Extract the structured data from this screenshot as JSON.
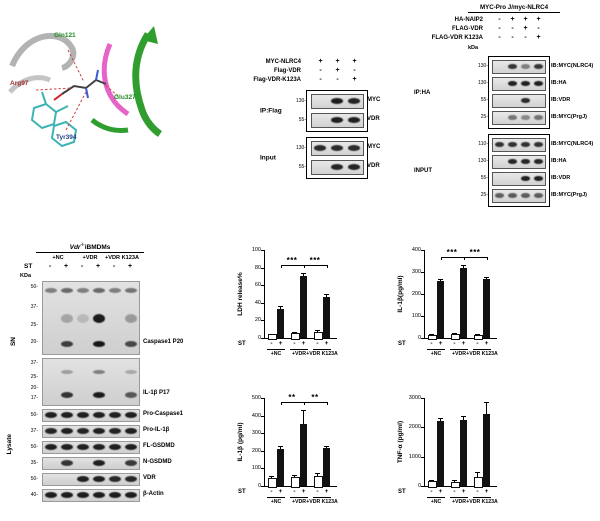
{
  "panel_a": {
    "residues": [
      {
        "name": "Gln121",
        "color": "#1f8a1f"
      },
      {
        "name": "Arg97",
        "color": "#a03030"
      },
      {
        "name": "Tyr394",
        "color": "#1f3f8a"
      },
      {
        "name": "Glu327",
        "color": "#1f8a1f"
      }
    ]
  },
  "panel_b": {
    "conditions": [
      {
        "label": "MYC-NLRC4",
        "values": [
          "+",
          "+",
          "+"
        ]
      },
      {
        "label": "Flag-VDR",
        "values": [
          "-",
          "+",
          "-"
        ]
      },
      {
        "label": "Flag-VDR-K123A",
        "values": [
          "-",
          "-",
          "+"
        ]
      }
    ],
    "sections": [
      {
        "label": "IP:Flag",
        "strips": [
          {
            "marker": "130",
            "target": "MYC",
            "bands": [
              0,
              0.92,
              0.88
            ]
          },
          {
            "marker": "55",
            "target": "VDR",
            "bands": [
              0,
              0.9,
              0.9
            ]
          }
        ]
      },
      {
        "label": "Input",
        "strips": [
          {
            "marker": "130",
            "target": "MYC",
            "bands": [
              0.85,
              0.85,
              0.85
            ]
          },
          {
            "marker": "55",
            "target": "VDR",
            "bands": [
              0,
              0.88,
              0.88
            ]
          }
        ]
      }
    ]
  },
  "panel_c": {
    "title": "MYC-Pro J/myc-NLRC4",
    "kda": "kDa",
    "conditions": [
      {
        "label": "HA-NAIP2",
        "values": [
          "-",
          "+",
          "+",
          "+"
        ]
      },
      {
        "label": "FLAG-VDR",
        "values": [
          "-",
          "-",
          "+",
          "-"
        ]
      },
      {
        "label": "FLAG-VDR K123A",
        "values": [
          "-",
          "-",
          "-",
          "+"
        ]
      }
    ],
    "sections": [
      {
        "label": "IP:HA",
        "strips": [
          {
            "marker": "130",
            "ib": "IB:MYC(NLRC4)",
            "bands": [
              0,
              0.8,
              0.45,
              0.8
            ]
          },
          {
            "marker": "130",
            "ib": "IB:HA",
            "bands": [
              0,
              0.9,
              0.9,
              0.9
            ]
          },
          {
            "marker": "55",
            "ib": "IB:VDR",
            "bands": [
              0,
              0,
              0.85,
              0
            ]
          },
          {
            "marker": "25",
            "ib": "IB:MYC(PrgJ)",
            "bands": [
              0,
              0.5,
              0.4,
              0.5
            ]
          }
        ]
      },
      {
        "label": "INPUT",
        "strips": [
          {
            "marker": "110",
            "ib": "IB:MYC(NLRC4)",
            "bands": [
              0.82,
              0.82,
              0.82,
              0.82
            ]
          },
          {
            "marker": "130",
            "ib": "IB:HA",
            "bands": [
              0,
              0.88,
              0.88,
              0.88
            ]
          },
          {
            "marker": "55",
            "ib": "IB:VDR",
            "bands": [
              0,
              0,
              0.9,
              0.9
            ]
          },
          {
            "marker": "25",
            "ib": "IB:MYC(PrgJ)",
            "bands": [
              0.6,
              0.62,
              0.62,
              0.62
            ]
          }
        ]
      }
    ]
  },
  "panel_d": {
    "title": {
      "gene": "Vdr",
      "sup": "-/-",
      "rest": "iBMDMs"
    },
    "groups": [
      "+NC",
      "+VDR",
      "+VDR K123A"
    ],
    "st_label": "ST",
    "st_values": [
      "-",
      "+",
      "-",
      "+",
      "-",
      "+"
    ],
    "kda": "KDa",
    "sn_label": "SN",
    "lysate_label": "Lysate",
    "sn_blots": [
      {
        "label": "Caspase1 P20",
        "markers": [
          "50",
          "37",
          "25",
          "20"
        ],
        "rows": [
          {
            "y": 0.12,
            "h": 5,
            "lanes": [
              0.45,
              0.55,
              0.45,
              0.55,
              0.45,
              0.5
            ]
          },
          {
            "y": 0.5,
            "h": 9,
            "lanes": [
              0,
              0.25,
              0.15,
              0.92,
              0,
              0.3
            ]
          },
          {
            "y": 0.86,
            "h": 6,
            "lanes": [
              0,
              0.75,
              0,
              0.95,
              0,
              0.7
            ]
          }
        ]
      },
      {
        "label": "IL-1β P17",
        "markers": [
          "37",
          "25",
          "20",
          "17"
        ],
        "rows": [
          {
            "y": 0.28,
            "h": 4,
            "lanes": [
              0,
              0.3,
              0,
              0.45,
              0,
              0.25
            ]
          },
          {
            "y": 0.78,
            "h": 6,
            "lanes": [
              0,
              0.8,
              0,
              0.92,
              0,
              0.62
            ]
          }
        ]
      }
    ],
    "lysate_strips": [
      {
        "marker": "50",
        "label": "Pro-Caspase1",
        "bands": [
          0.9,
          0.9,
          0.9,
          0.9,
          0.9,
          0.9
        ]
      },
      {
        "marker": "37",
        "label": "Pro-IL-1β",
        "bands": [
          0.88,
          0.9,
          0.88,
          0.9,
          0.88,
          0.9
        ]
      },
      {
        "marker": "50",
        "label": "FL-GSDMD",
        "bands": [
          0.9,
          0.9,
          0.9,
          0.9,
          0.9,
          0.9
        ]
      },
      {
        "marker": "35",
        "label": "N-GSDMD",
        "bands": [
          0,
          0.8,
          0,
          0.9,
          0,
          0.78
        ]
      },
      {
        "marker": "50",
        "label": "VDR",
        "bands": [
          0,
          0,
          0.9,
          0.9,
          0.86,
          0.86
        ]
      },
      {
        "marker": "40",
        "label": "β-Actin",
        "bands": [
          0.92,
          0.92,
          0.92,
          0.92,
          0.92,
          0.92
        ]
      }
    ]
  },
  "chart_data": [
    {
      "id": "ldh",
      "type": "bar",
      "ylabel": "LDH release%",
      "ylim": [
        0,
        100
      ],
      "yticks": [
        0,
        20,
        40,
        60,
        80,
        100
      ],
      "groups": [
        "+NC",
        "+VDR",
        "+VDR K123A"
      ],
      "st_label": "ST",
      "st": [
        "-",
        "+",
        "-",
        "+",
        "-",
        "+"
      ],
      "values": [
        4,
        33,
        6,
        70,
        7,
        47
      ],
      "errors": [
        1,
        3,
        1,
        4,
        2,
        3
      ],
      "filled": [
        false,
        true,
        false,
        true,
        false,
        true
      ],
      "sig": [
        {
          "a": 1,
          "b": 3,
          "label": "***"
        },
        {
          "a": 3,
          "b": 5,
          "label": "***"
        }
      ]
    },
    {
      "id": "il1b-sn",
      "type": "bar",
      "ylabel": "IL-1β(pg/ml)",
      "ylim": [
        0,
        400
      ],
      "yticks": [
        0,
        100,
        200,
        300,
        400
      ],
      "groups": [
        "+NC",
        "+VDR",
        "+VDR K123A"
      ],
      "st_label": "ST",
      "st": [
        "-",
        "+",
        "-",
        "+",
        "-",
        "+"
      ],
      "values": [
        15,
        258,
        18,
        320,
        15,
        268
      ],
      "errors": [
        4,
        8,
        4,
        10,
        4,
        8
      ],
      "filled": [
        false,
        true,
        false,
        true,
        false,
        true
      ],
      "sig": [
        {
          "a": 1,
          "b": 3,
          "label": "***"
        },
        {
          "a": 3,
          "b": 5,
          "label": "***"
        }
      ]
    },
    {
      "id": "il1b-lys",
      "type": "bar",
      "ylabel": "IL-1β (pg/ml)",
      "ylim": [
        0,
        500
      ],
      "yticks": [
        0,
        100,
        200,
        300,
        400,
        500
      ],
      "groups": [
        "+NC",
        "+VDR",
        "+VDR K123A"
      ],
      "st_label": "ST",
      "st": [
        "-",
        "+",
        "-",
        "+",
        "-",
        "+"
      ],
      "values": [
        45,
        212,
        52,
        350,
        58,
        215
      ],
      "errors": [
        12,
        15,
        12,
        80,
        14,
        15
      ],
      "filled": [
        false,
        true,
        false,
        true,
        false,
        true
      ],
      "sig": [
        {
          "a": 1,
          "b": 3,
          "label": "**"
        },
        {
          "a": 3,
          "b": 5,
          "label": "**"
        }
      ]
    },
    {
      "id": "tnfa",
      "type": "bar",
      "ylabel": "TNF-α (pg/ml)",
      "ylim": [
        0,
        3000
      ],
      "yticks": [
        0,
        1000,
        2000,
        3000
      ],
      "groups": [
        "+NC",
        "+VDR",
        "+VDR K123A"
      ],
      "st_label": "ST",
      "st": [
        "-",
        "+",
        "-",
        "+",
        "-",
        "+"
      ],
      "values": [
        160,
        2200,
        150,
        2250,
        300,
        2450
      ],
      "errors": [
        60,
        120,
        50,
        130,
        170,
        420
      ],
      "filled": [
        false,
        true,
        false,
        true,
        false,
        true
      ],
      "sig": []
    }
  ]
}
